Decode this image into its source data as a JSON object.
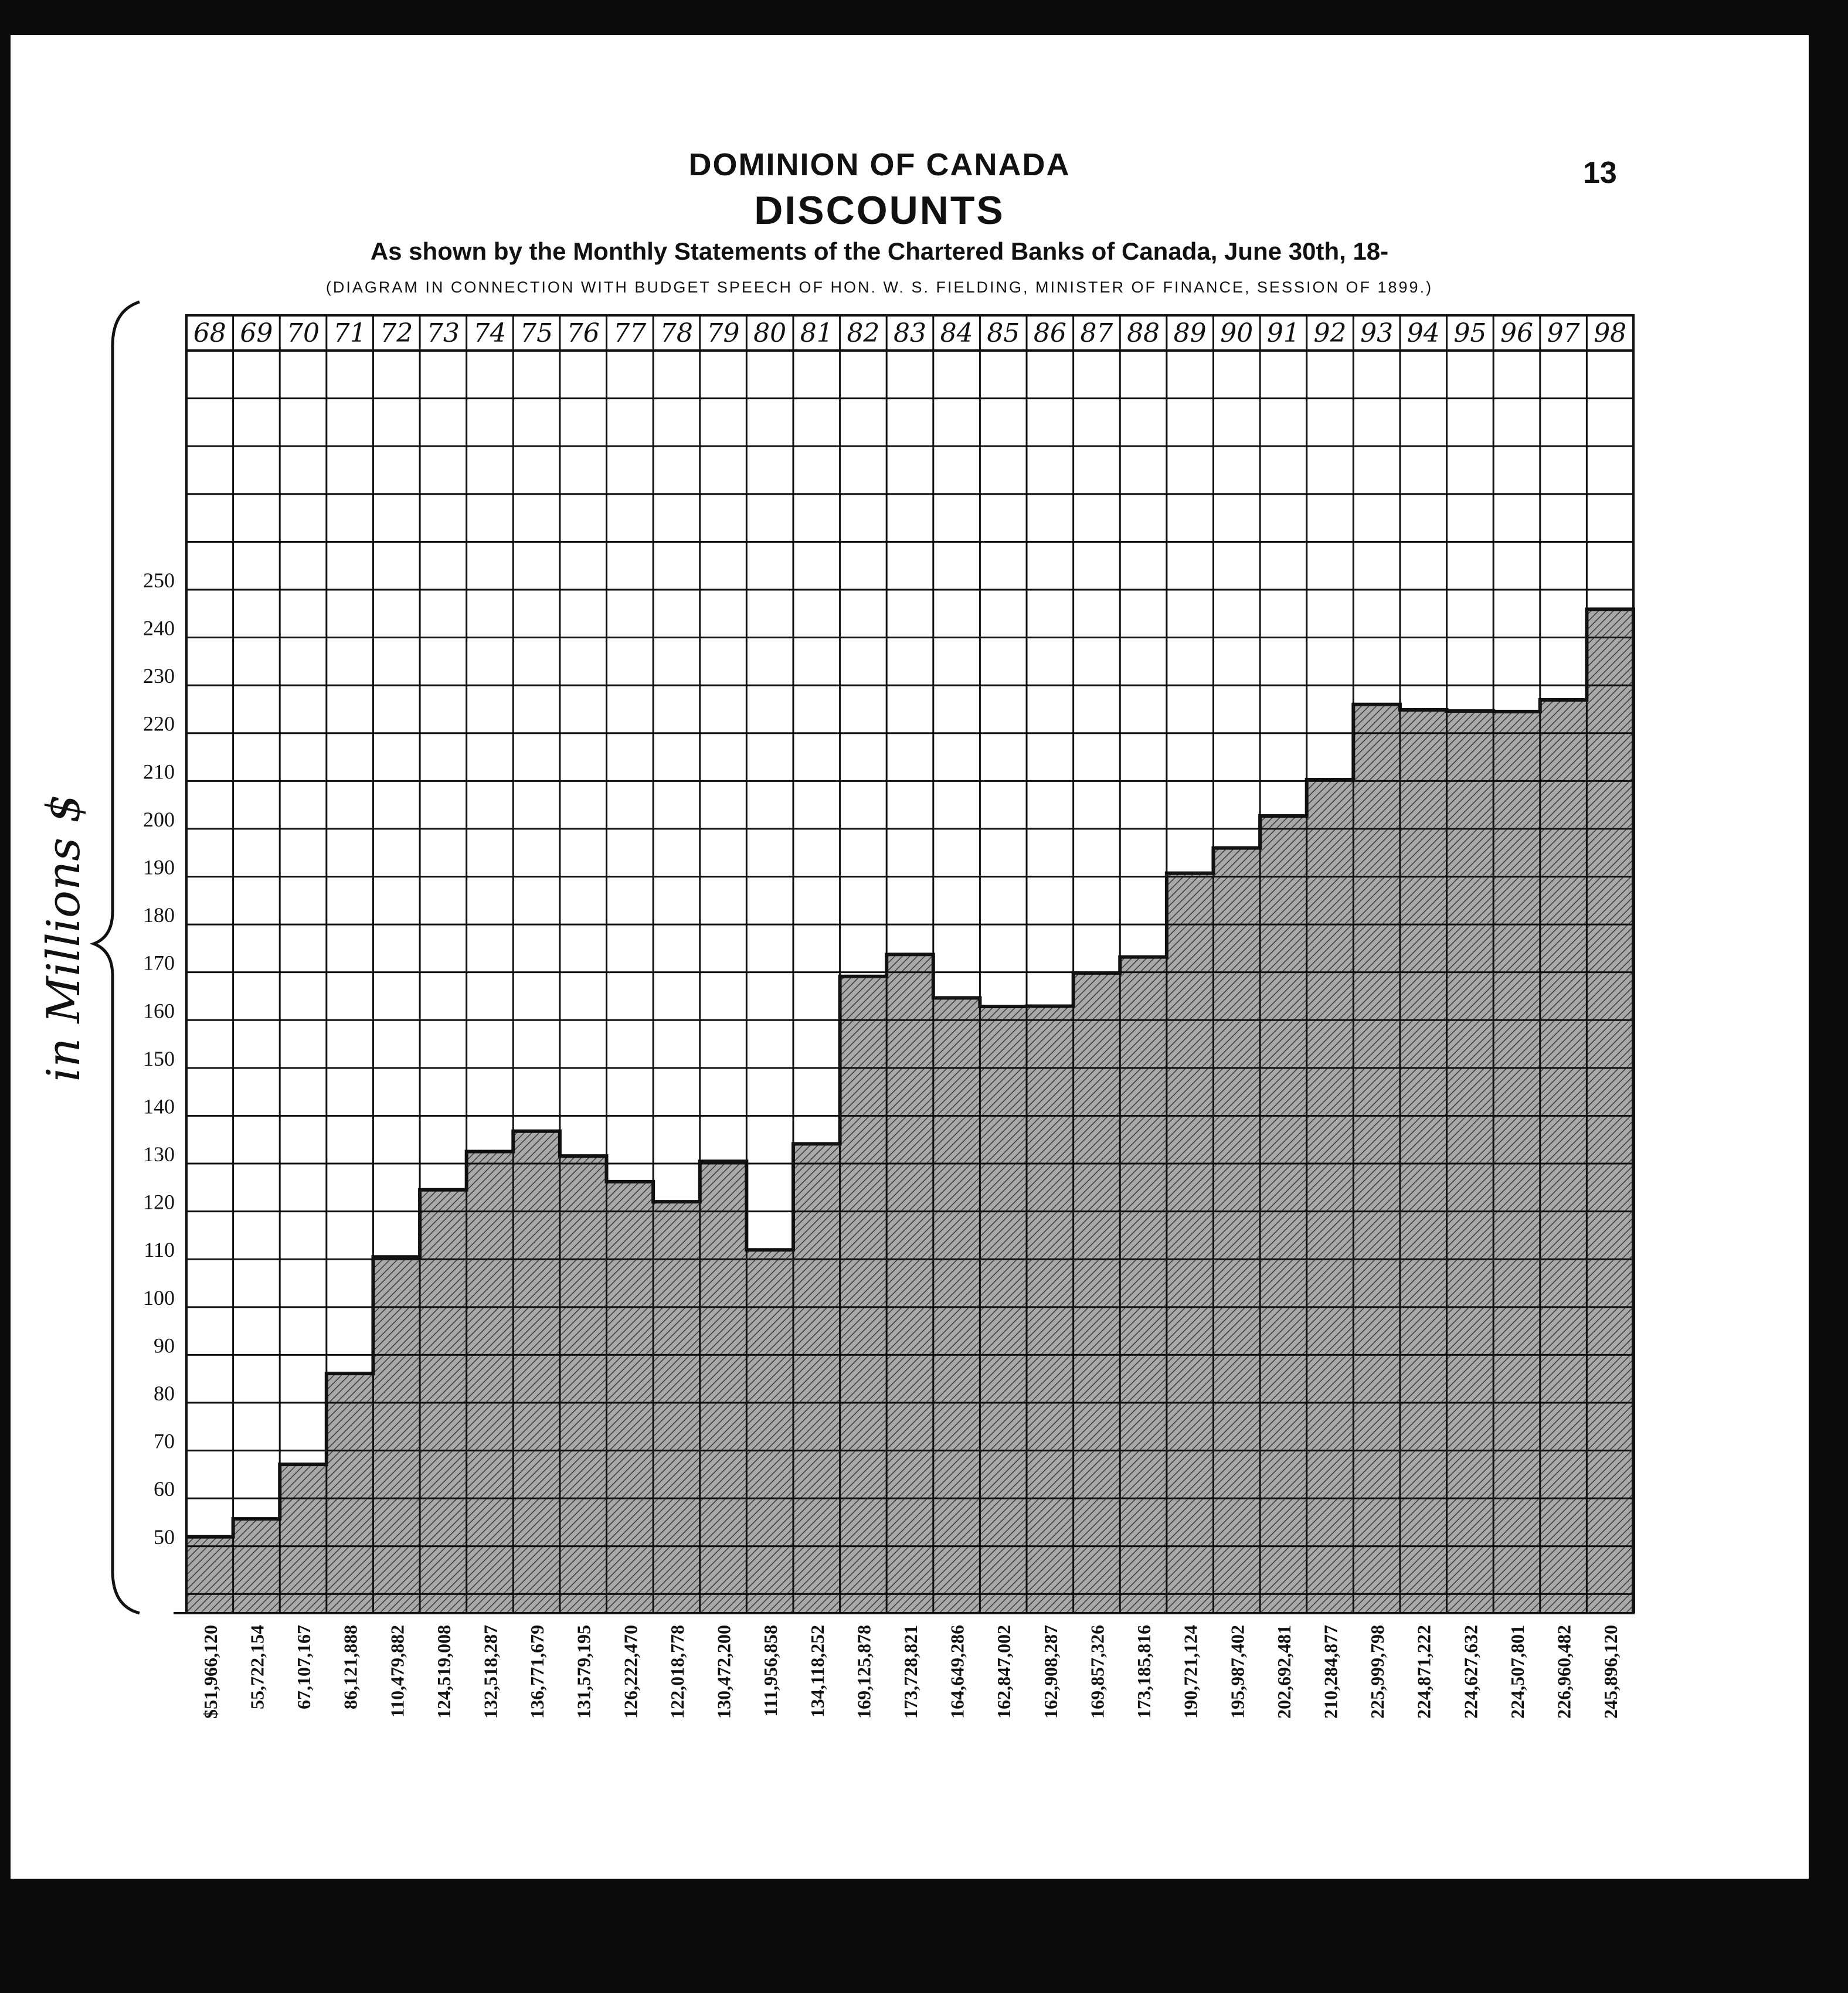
{
  "page": {
    "number": "13",
    "title": "DOMINION OF CANADA",
    "heading": "DISCOUNTS",
    "subtitle": "As shown by the Monthly Statements of the Chartered Banks of Canada, June 30th, 18-",
    "note": "(Diagram in Connection with Budget Speech of Hon. W. S. Fielding, Minister of Finance, Session of 1899.)"
  },
  "colors": {
    "ink": "#111111",
    "paper": "#ffffff",
    "fill": "#9a9a9a",
    "hatch": "#3a3a3a"
  },
  "chart_data": {
    "type": "bar",
    "title": "DISCOUNTS",
    "ylabel": "in Millions $",
    "ylim": [
      36,
      300
    ],
    "yticks": [
      50,
      60,
      70,
      80,
      90,
      100,
      110,
      120,
      130,
      140,
      150,
      160,
      170,
      180,
      190,
      200,
      210,
      220,
      230,
      240,
      250
    ],
    "categories": [
      "68",
      "69",
      "70",
      "71",
      "72",
      "73",
      "74",
      "75",
      "76",
      "77",
      "78",
      "79",
      "80",
      "81",
      "82",
      "83",
      "84",
      "85",
      "86",
      "87",
      "88",
      "89",
      "90",
      "91",
      "92",
      "93",
      "94",
      "95",
      "96",
      "97",
      "98"
    ],
    "value_labels": [
      "$51,966,120",
      "55,722,154",
      "67,107,167",
      "86,121,888",
      "110,479,882",
      "124,519,008",
      "132,518,287",
      "136,771,679",
      "131,579,195",
      "126,222,470",
      "122,018,778",
      "130,472,200",
      "111,956,858",
      "134,118,252",
      "169,125,878",
      "173,728,821",
      "164,649,286",
      "162,847,002",
      "162,908,287",
      "169,857,326",
      "173,185,816",
      "190,721,124",
      "195,987,402",
      "202,692,481",
      "210,284,877",
      "225,999,798",
      "224,871,222",
      "224,627,632",
      "224,507,801",
      "226,960,482",
      "245,896,120"
    ],
    "values": [
      51.97,
      55.72,
      67.11,
      86.12,
      110.48,
      124.52,
      132.52,
      136.77,
      131.58,
      126.22,
      122.02,
      130.47,
      111.96,
      134.12,
      169.13,
      173.73,
      164.65,
      162.85,
      162.91,
      169.86,
      173.19,
      190.72,
      195.99,
      202.69,
      210.28,
      226.0,
      224.87,
      224.63,
      224.51,
      226.96,
      245.9
    ],
    "grid": true,
    "legend": "none"
  }
}
